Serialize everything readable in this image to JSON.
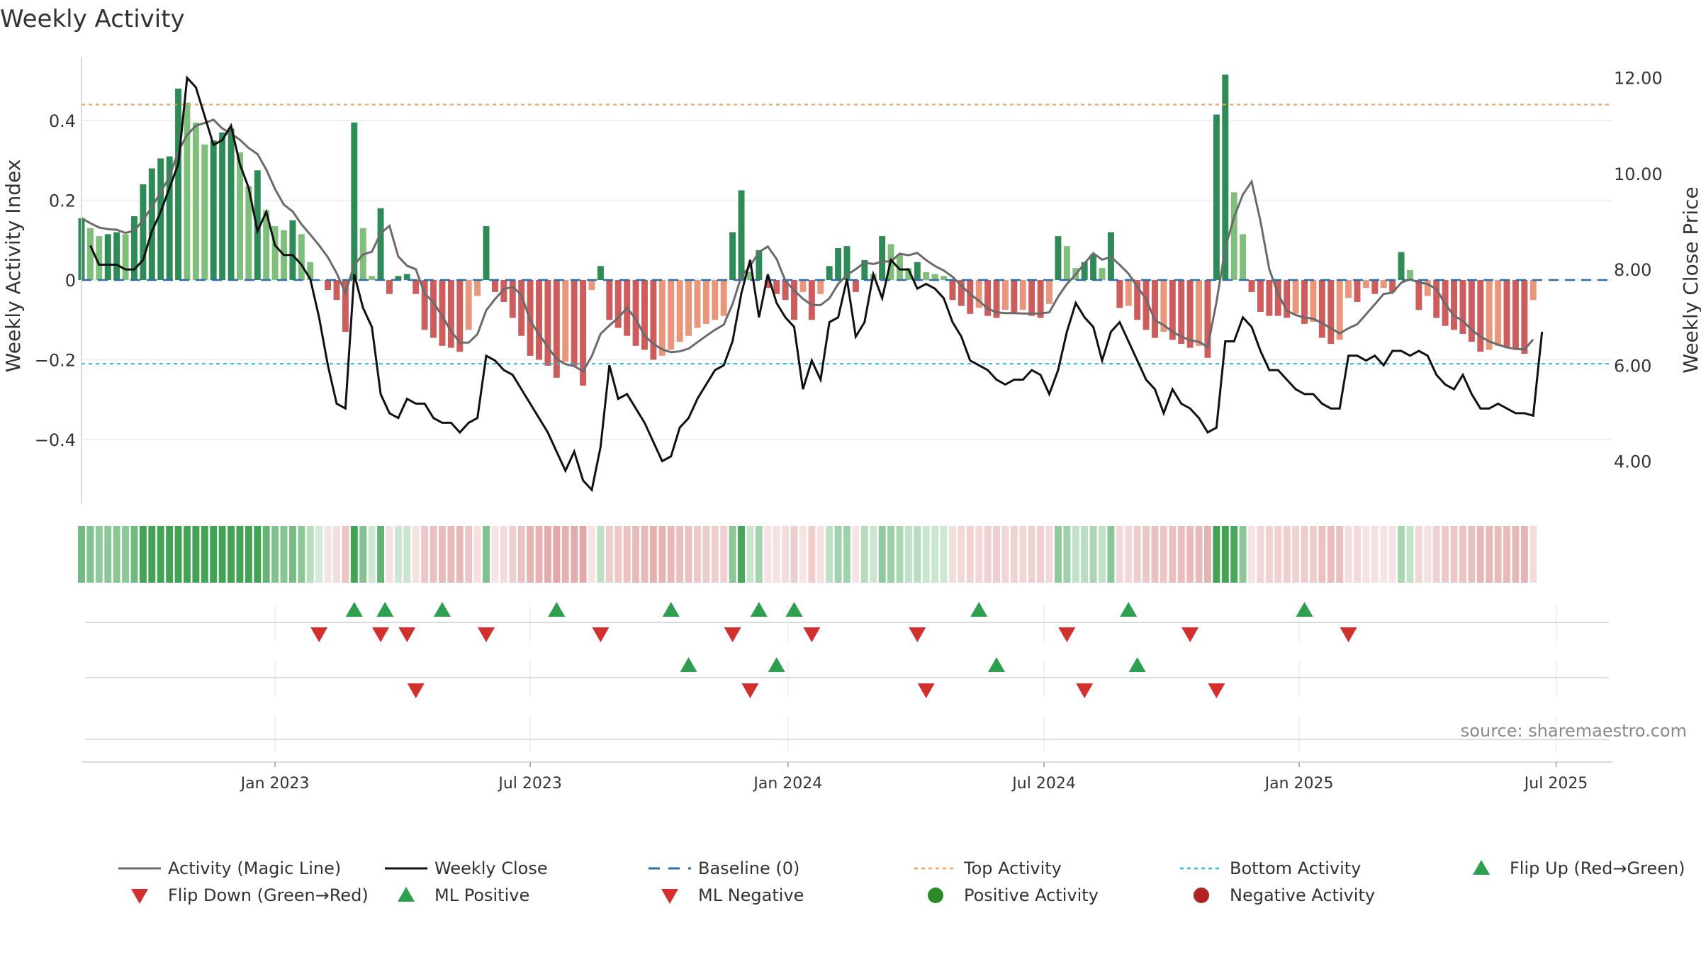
{
  "chart_data": {
    "type": "bar",
    "title": "Weekly Activity",
    "ylabel": "Weekly Activity Index",
    "y2label": "Weekly Close Price",
    "ylim": [
      -0.56,
      0.56
    ],
    "y2lim": [
      3.12,
      12.44
    ],
    "y_ticks": [
      {
        "v": 0.4,
        "label": "0.4"
      },
      {
        "v": 0.2,
        "label": "0.2"
      },
      {
        "v": 0,
        "label": "0"
      },
      {
        "v": -0.2,
        "label": "−0.2"
      },
      {
        "v": -0.4,
        "label": "−0.4"
      }
    ],
    "y2_ticks": [
      {
        "v": 12,
        "label": "12.00"
      },
      {
        "v": 10,
        "label": "10.00"
      },
      {
        "v": 8,
        "label": "8.00"
      },
      {
        "v": 6,
        "label": "6.00"
      },
      {
        "v": 4,
        "label": "4.00"
      }
    ],
    "x_start_week": -22,
    "x_end_week": 152,
    "x_ticks": [
      {
        "w": 0,
        "label": "Jan 2023"
      },
      {
        "w": 29,
        "label": "Jul 2023"
      },
      {
        "w": 58.3,
        "label": "Jan 2024"
      },
      {
        "w": 87.4,
        "label": "Jul 2024"
      },
      {
        "w": 116.4,
        "label": "Jan 2025"
      },
      {
        "w": 145.6,
        "label": "Jul 2025"
      }
    ],
    "reference_lines": {
      "top_activity": 0.44,
      "bottom_activity": -0.21,
      "baseline": 0
    },
    "activity": [
      0.155,
      0.13,
      0.11,
      0.115,
      0.12,
      0.115,
      0.16,
      0.24,
      0.28,
      0.305,
      0.31,
      0.48,
      0.445,
      0.395,
      0.34,
      0.35,
      0.37,
      0.38,
      0.32,
      0.235,
      0.275,
      0.175,
      0.135,
      0.125,
      0.15,
      0.115,
      0.045,
      0,
      -0.025,
      -0.05,
      -0.13,
      0.395,
      0.13,
      0.01,
      0.18,
      -0.035,
      0.01,
      0.015,
      -0.035,
      -0.125,
      -0.145,
      -0.165,
      -0.17,
      -0.18,
      -0.125,
      -0.04,
      0.135,
      -0.03,
      -0.055,
      -0.095,
      -0.14,
      -0.19,
      -0.2,
      -0.215,
      -0.245,
      -0.205,
      -0.215,
      -0.265,
      -0.025,
      0.035,
      -0.1,
      -0.12,
      -0.14,
      -0.165,
      -0.175,
      -0.2,
      -0.19,
      -0.175,
      -0.155,
      -0.14,
      -0.12,
      -0.11,
      -0.1,
      -0.09,
      0.12,
      0.225,
      0.02,
      0.075,
      -0.02,
      -0.035,
      -0.05,
      -0.1,
      -0.03,
      -0.1,
      -0.035,
      0.035,
      0.08,
      0.085,
      -0.03,
      0.05,
      0.015,
      0.11,
      0.09,
      0.065,
      0.03,
      0.045,
      0.02,
      0.015,
      0.01,
      -0.05,
      -0.065,
      -0.085,
      -0.07,
      -0.09,
      -0.095,
      -0.075,
      -0.085,
      -0.075,
      -0.09,
      -0.095,
      -0.06,
      0.11,
      0.085,
      0.03,
      0.045,
      0.065,
      0.03,
      0.12,
      -0.07,
      -0.065,
      -0.1,
      -0.125,
      -0.145,
      -0.13,
      -0.15,
      -0.16,
      -0.17,
      -0.165,
      -0.195,
      0.415,
      0.515,
      0.22,
      0.115,
      -0.03,
      -0.08,
      -0.09,
      -0.09,
      -0.095,
      -0.085,
      -0.11,
      -0.105,
      -0.145,
      -0.16,
      -0.15,
      -0.045,
      -0.055,
      -0.02,
      -0.035,
      -0.02,
      -0.03,
      0.07,
      0.025,
      -0.075,
      -0.04,
      -0.095,
      -0.115,
      -0.125,
      -0.135,
      -0.155,
      -0.18,
      -0.175,
      -0.165,
      -0.17,
      -0.175,
      -0.185,
      -0.05
    ],
    "close_start_week": -21,
    "weekly_close": [
      8.5,
      8.1,
      8.1,
      8.1,
      8.0,
      8.0,
      8.2,
      8.8,
      9.2,
      9.7,
      10.2,
      12.0,
      11.8,
      11.2,
      10.6,
      10.7,
      11.0,
      10.2,
      9.7,
      8.8,
      9.2,
      8.5,
      8.3,
      8.3,
      8.1,
      7.8,
      7.0,
      6.0,
      5.2,
      5.1,
      7.9,
      7.2,
      6.8,
      5.4,
      5.0,
      4.9,
      5.3,
      5.2,
      5.2,
      4.9,
      4.8,
      4.8,
      4.6,
      4.8,
      4.9,
      6.2,
      6.1,
      5.9,
      5.8,
      5.5,
      5.2,
      4.9,
      4.6,
      4.2,
      3.8,
      4.2,
      3.6,
      3.4,
      4.3,
      6.0,
      5.3,
      5.4,
      5.1,
      4.8,
      4.4,
      4.0,
      4.1,
      4.7,
      4.9,
      5.3,
      5.6,
      5.9,
      6.0,
      6.5,
      7.5,
      8.2,
      7.0,
      7.9,
      7.3,
      7.0,
      6.8,
      5.5,
      6.1,
      5.7,
      6.9,
      7.0,
      7.8,
      6.6,
      6.9,
      7.9,
      7.4,
      8.2,
      8.0,
      8.0,
      7.6,
      7.7,
      7.6,
      7.4,
      6.9,
      6.6,
      6.1,
      6.0,
      5.9,
      5.7,
      5.6,
      5.7,
      5.7,
      5.9,
      5.8,
      5.4,
      5.9,
      6.7,
      7.3,
      7.0,
      6.8,
      6.1,
      6.7,
      6.9,
      6.5,
      6.1,
      5.7,
      5.5,
      5.0,
      5.5,
      5.2,
      5.1,
      4.9,
      4.6,
      4.7,
      6.5,
      6.5,
      7.0,
      6.8,
      6.3,
      5.9,
      5.9,
      5.7,
      5.5,
      5.4,
      5.4,
      5.2,
      5.1,
      5.1,
      6.2,
      6.2,
      6.1,
      6.2,
      6.0,
      6.3,
      6.3,
      6.2,
      6.3,
      6.2,
      5.8,
      5.6,
      5.5,
      5.8,
      5.4,
      5.1,
      5.1,
      5.2,
      5.1,
      5.0,
      5.0,
      4.95,
      6.7
    ],
    "flip_up_weeks": [
      9,
      12.5,
      19,
      32,
      45,
      55,
      59,
      80,
      97,
      117
    ],
    "flip_down_weeks": [
      5,
      12,
      15,
      24,
      37,
      52,
      61,
      73,
      90,
      104,
      122
    ],
    "ml_positive_weeks": [
      47,
      57,
      82,
      98
    ],
    "ml_negative_weeks": [
      16,
      54,
      74,
      92,
      107
    ],
    "grid": true,
    "source": "source: sharemaestro.com",
    "legend": {
      "position": "bottom",
      "items": [
        {
          "label": "Activity (Magic Line)",
          "kind": "line",
          "color": "#6b6b6b"
        },
        {
          "label": "Weekly Close",
          "kind": "line",
          "color": "#111111"
        },
        {
          "label": "Baseline (0)",
          "kind": "dash",
          "color": "#2b6ea8"
        },
        {
          "label": "Top Activity",
          "kind": "dot-line",
          "color": "#f0a05a"
        },
        {
          "label": "Bottom Activity",
          "kind": "dot-line",
          "color": "#27b9cf"
        },
        {
          "label": "Flip Up (Red→Green)",
          "kind": "triangle-up",
          "color": "#2e9e4f"
        },
        {
          "label": "Flip Down (Green→Red)",
          "kind": "triangle-down",
          "color": "#d32f2f"
        },
        {
          "label": "ML Positive",
          "kind": "triangle-up",
          "color": "#2e9e4f"
        },
        {
          "label": "ML Negative",
          "kind": "triangle-down",
          "color": "#d32f2f"
        },
        {
          "label": "Positive Activity",
          "kind": "circle",
          "color": "#2a8a2a"
        },
        {
          "label": "Negative Activity",
          "kind": "circle",
          "color": "#b22222"
        }
      ]
    }
  }
}
